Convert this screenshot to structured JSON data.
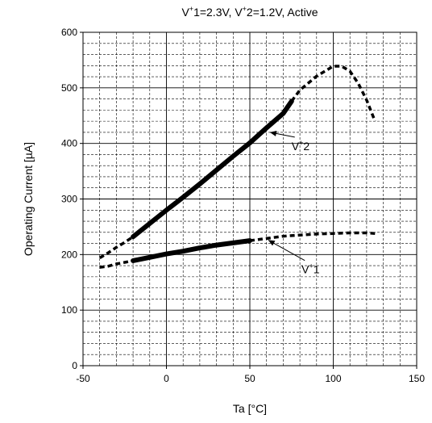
{
  "chart_data": {
    "type": "line",
    "title": "V⁺1=2.3V, V⁺2=1.2V, Active",
    "xlabel": "Ta [°C]",
    "ylabel": "Operating Current [µA]",
    "xlim": [
      -50,
      150
    ],
    "ylim": [
      0,
      600
    ],
    "x_ticks": [
      "-50",
      "0",
      "50",
      "100",
      "150"
    ],
    "y_ticks": [
      "0",
      "100",
      "200",
      "300",
      "400",
      "500",
      "600"
    ],
    "grid": true,
    "series": [
      {
        "name": "V⁺2",
        "color": "#000000",
        "measured": {
          "x": [
            -20,
            -10,
            0,
            10,
            20,
            30,
            40,
            50,
            60,
            70,
            75
          ],
          "y": [
            232,
            256,
            280,
            303,
            327,
            352,
            377,
            401,
            428,
            454,
            476
          ]
        },
        "extrapolated_low": {
          "x": [
            -40,
            -35,
            -30,
            -25,
            -20
          ],
          "y": [
            194,
            203,
            213,
            222,
            232
          ]
        },
        "extrapolated_high": {
          "x": [
            75,
            80,
            90,
            100,
            105,
            110,
            115,
            120,
            125
          ],
          "y": [
            476,
            496,
            521,
            539,
            539,
            530,
            508,
            478,
            440
          ]
        }
      },
      {
        "name": "V⁺1",
        "color": "#000000",
        "measured": {
          "x": [
            -20,
            -10,
            0,
            10,
            20,
            30,
            40,
            50
          ],
          "y": [
            189,
            195,
            201,
            206,
            212,
            217,
            221,
            225
          ]
        },
        "extrapolated_low": {
          "x": [
            -40,
            -35,
            -30,
            -25,
            -20
          ],
          "y": [
            177,
            179,
            183,
            186,
            189
          ]
        },
        "extrapolated_high": {
          "x": [
            50,
            60,
            70,
            80,
            90,
            100,
            110,
            120,
            125
          ],
          "y": [
            225,
            229,
            233,
            235,
            237,
            238,
            239,
            239,
            238
          ]
        }
      }
    ],
    "annotations": [
      {
        "label": "V⁺2",
        "x": 75,
        "y": 388,
        "arrow_to": [
          62,
          420
        ]
      },
      {
        "label": "V⁺1",
        "x": 81,
        "y": 166,
        "arrow_to": [
          61,
          226
        ]
      }
    ]
  }
}
